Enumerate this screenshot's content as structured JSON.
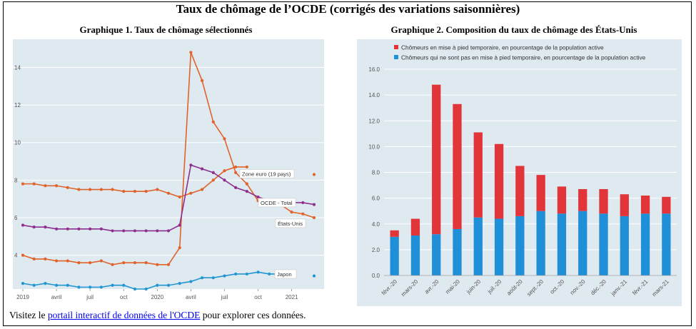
{
  "main_title": "Taux de chômage de l’OCDE (corrigés des variations saisonnières)",
  "footer": {
    "prefix": "Visitez le ",
    "link": "portail interactif de données de l'OCDE",
    "suffix": " pour explorer ces données."
  },
  "chart_data": [
    {
      "type": "line",
      "title": "Graphique 1. Taux de chômage sélectionnés",
      "xlabel": "",
      "ylabel": "",
      "ylim": [
        2.2,
        15.5
      ],
      "yticks": [
        4,
        6,
        8,
        10,
        12,
        14
      ],
      "xtick_labels": [
        "2019",
        "avril",
        "juil",
        "oct",
        "2020",
        "avril",
        "juil",
        "oct",
        "2021"
      ],
      "months": [
        "2019-01",
        "2019-02",
        "2019-03",
        "2019-04",
        "2019-05",
        "2019-06",
        "2019-07",
        "2019-08",
        "2019-09",
        "2019-10",
        "2019-11",
        "2019-12",
        "2020-01",
        "2020-02",
        "2020-03",
        "2020-04",
        "2020-05",
        "2020-06",
        "2020-07",
        "2020-08",
        "2020-09",
        "2020-10",
        "2020-11",
        "2020-12",
        "2021-01",
        "2021-02",
        "2021-03"
      ],
      "grid": true,
      "background": "#dfe9f0",
      "series": [
        {
          "name": "États-Unis",
          "color": "#e0632a",
          "values": [
            4.0,
            3.8,
            3.8,
            3.7,
            3.7,
            3.6,
            3.6,
            3.7,
            3.5,
            3.6,
            3.6,
            3.6,
            3.5,
            3.5,
            4.4,
            14.8,
            13.3,
            11.1,
            10.2,
            8.4,
            7.8,
            6.9,
            6.7,
            6.7,
            6.3,
            6.2,
            6.0
          ]
        },
        {
          "name": "Zone euro (19 pays)",
          "color": "#e0632a",
          "values": [
            7.8,
            7.8,
            7.7,
            7.7,
            7.6,
            7.5,
            7.5,
            7.5,
            7.5,
            7.4,
            7.4,
            7.4,
            7.5,
            7.3,
            7.1,
            7.3,
            7.5,
            8.0,
            8.5,
            8.7,
            8.7,
            null,
            null,
            null,
            null,
            null,
            8.3
          ]
        },
        {
          "name": "OCDE - Total",
          "color": "#8e2f8e",
          "values": [
            5.6,
            5.5,
            5.5,
            5.4,
            5.4,
            5.4,
            5.4,
            5.4,
            5.3,
            5.3,
            5.3,
            5.3,
            5.3,
            5.3,
            5.6,
            8.8,
            8.6,
            8.4,
            8.0,
            7.6,
            7.4,
            7.1,
            6.9,
            6.9,
            6.8,
            6.8,
            6.7
          ]
        },
        {
          "name": "Japon",
          "color": "#2196d3",
          "values": [
            2.5,
            2.4,
            2.5,
            2.4,
            2.4,
            2.3,
            2.3,
            2.3,
            2.4,
            2.4,
            2.2,
            2.2,
            2.4,
            2.4,
            2.5,
            2.6,
            2.8,
            2.8,
            2.9,
            3.0,
            3.0,
            3.1,
            3.0,
            3.0,
            2.9,
            null,
            2.9
          ]
        }
      ],
      "annotations": [
        "Zone euro (19 pays)",
        "OCDE - Total",
        "États-Unis",
        "Japon"
      ]
    },
    {
      "type": "bar",
      "stacked": true,
      "title": "Graphique 2. Composition du taux de chômage des États-Unis",
      "xlabel": "",
      "ylabel": "",
      "ylim": [
        0,
        16
      ],
      "yticks": [
        "0.0",
        "2.0",
        "4.0",
        "6.0",
        "8.0",
        "10.0",
        "12.0",
        "14.0",
        "16.0"
      ],
      "grid": true,
      "background": "#dfe9f0",
      "legend_position": "top",
      "categories": [
        "févr.-20",
        "mars-20",
        "avr.-20",
        "mai-20",
        "juin-20",
        "juil.-20",
        "août-20",
        "sept.-20",
        "oct.-20",
        "nov.-20",
        "déc.-20",
        "janv.-21",
        "févr.-21",
        "mars-21"
      ],
      "series": [
        {
          "name": "Chômeurs qui ne sont pas en mise à pied temporaire, en pourcentage de la population active",
          "color": "#1f8fd8",
          "values": [
            3.0,
            3.1,
            3.2,
            3.6,
            4.5,
            4.4,
            4.6,
            5.0,
            4.8,
            5.0,
            4.8,
            4.6,
            4.8,
            4.8
          ]
        },
        {
          "name": "Chômeurs en mise à pied temporaire, en pourcentage de la population active",
          "color": "#e2353a",
          "values": [
            0.5,
            1.3,
            11.6,
            9.7,
            6.6,
            5.8,
            3.9,
            2.8,
            2.1,
            1.7,
            1.9,
            1.7,
            1.4,
            1.3
          ]
        }
      ]
    }
  ]
}
